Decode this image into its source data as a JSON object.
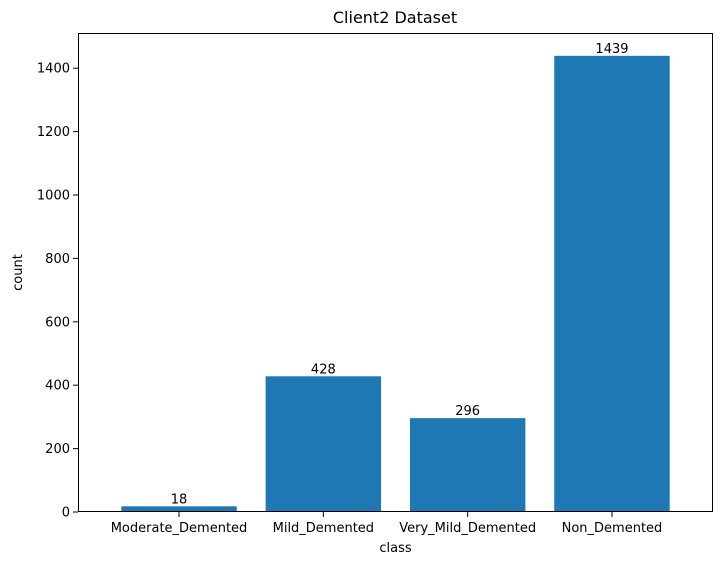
{
  "chart_data": {
    "type": "bar",
    "title": "Client2 Dataset",
    "xlabel": "class",
    "ylabel": "count",
    "categories": [
      "Moderate_Demented",
      "Mild_Demented",
      "Very_Mild_Demented",
      "Non_Demented"
    ],
    "values": [
      18,
      428,
      296,
      1439
    ],
    "data_labels": [
      "18",
      "428",
      "296",
      "1439"
    ],
    "ylim": [
      0,
      1511
    ],
    "yticks": [
      0,
      200,
      400,
      600,
      800,
      1000,
      1200,
      1400
    ],
    "grid": false,
    "legend": "none",
    "bar_color": "#1f77b4"
  }
}
